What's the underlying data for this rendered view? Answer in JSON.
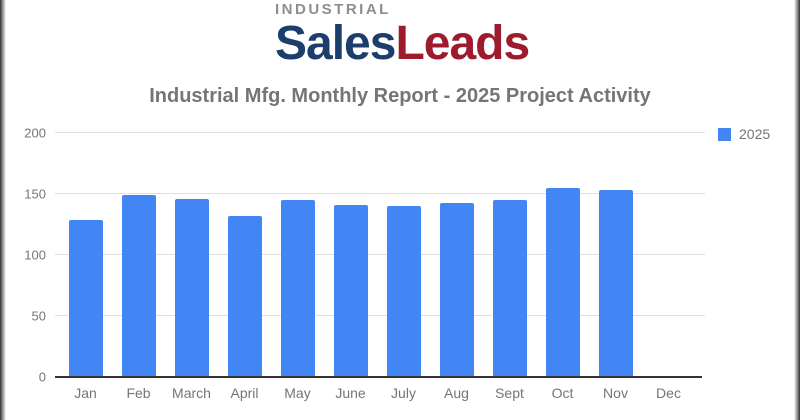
{
  "logo": {
    "industrial": "INDUSTRIAL",
    "sales": "Sales",
    "leads": "Leads"
  },
  "legend": {
    "label": "2025"
  },
  "colors": {
    "bar": "#4285f4",
    "logo_industrial": "#8b8e92",
    "logo_sales": "#1c3e6d",
    "logo_leads": "#9e1b2e",
    "title_text": "#757575",
    "axis_text": "#757575",
    "gridline": "#e0e0e0",
    "baseline": "#333333"
  },
  "chart_data": {
    "type": "bar",
    "title": "Industrial Mfg. Monthly Report - 2025 Project Activity",
    "categories": [
      "Jan",
      "Feb",
      "March",
      "April",
      "May",
      "June",
      "July",
      "Aug",
      "Sept",
      "Oct",
      "Nov",
      "Dec"
    ],
    "series": [
      {
        "name": "2025",
        "values": [
          129,
          149,
          146,
          132,
          145,
          141,
          140,
          143,
          145,
          155,
          153,
          0
        ]
      }
    ],
    "xlabel": "",
    "ylabel": "",
    "ylim": [
      0,
      200
    ],
    "yticks": [
      0,
      50,
      100,
      150,
      200
    ],
    "grid": true,
    "legend_position": "top-right"
  }
}
